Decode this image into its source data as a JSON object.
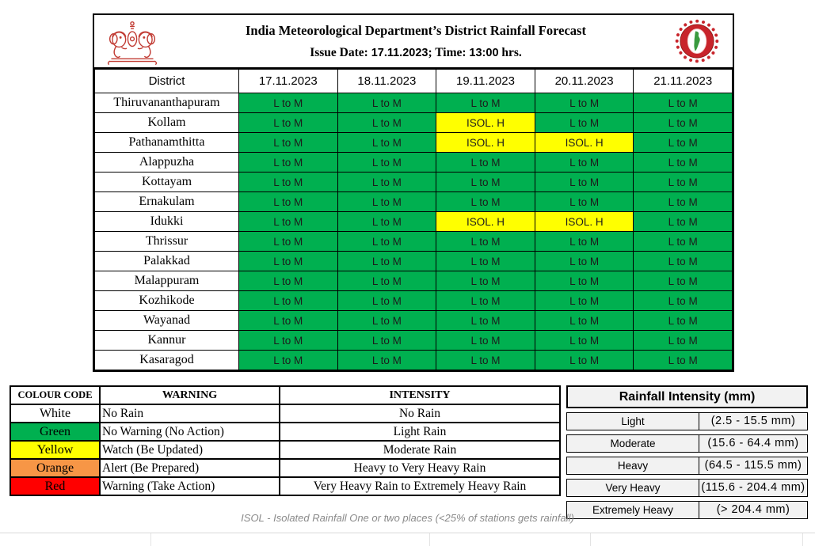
{
  "header": {
    "title": "India Meteorological Department’s District Rainfall Forecast",
    "issue_prefix": "Issue Date: ",
    "issue_date": "17.11.2023",
    "issue_mid": "; Time: ",
    "issue_time": "13:00",
    "issue_suffix": " hrs.",
    "left_logo": "kerala-government-emblem",
    "right_logo": "imd-logo"
  },
  "forecast_table": {
    "columns": [
      "District",
      "17.11.2023",
      "18.11.2023",
      "19.11.2023",
      "20.11.2023",
      "21.11.2023"
    ],
    "rows": [
      {
        "district": "Thiruvananthapuram",
        "cells": [
          {
            "text": "L to M",
            "color": "green"
          },
          {
            "text": "L to M",
            "color": "green"
          },
          {
            "text": "L to M",
            "color": "green"
          },
          {
            "text": "L to M",
            "color": "green"
          },
          {
            "text": "L to M",
            "color": "green"
          }
        ]
      },
      {
        "district": "Kollam",
        "cells": [
          {
            "text": "L to M",
            "color": "green"
          },
          {
            "text": "L to M",
            "color": "green"
          },
          {
            "text": "ISOL. H",
            "color": "yellow"
          },
          {
            "text": "L to M",
            "color": "green"
          },
          {
            "text": "L to M",
            "color": "green"
          }
        ]
      },
      {
        "district": "Pathanamthitta",
        "cells": [
          {
            "text": "L to M",
            "color": "green"
          },
          {
            "text": "L to M",
            "color": "green"
          },
          {
            "text": "ISOL. H",
            "color": "yellow"
          },
          {
            "text": "ISOL. H",
            "color": "yellow"
          },
          {
            "text": "L to M",
            "color": "green"
          }
        ]
      },
      {
        "district": "Alappuzha",
        "cells": [
          {
            "text": "L to M",
            "color": "green"
          },
          {
            "text": "L to M",
            "color": "green"
          },
          {
            "text": "L to M",
            "color": "green"
          },
          {
            "text": "L to M",
            "color": "green"
          },
          {
            "text": "L to M",
            "color": "green"
          }
        ]
      },
      {
        "district": "Kottayam",
        "cells": [
          {
            "text": "L to M",
            "color": "green"
          },
          {
            "text": "L to M",
            "color": "green"
          },
          {
            "text": "L to M",
            "color": "green"
          },
          {
            "text": "L to M",
            "color": "green"
          },
          {
            "text": "L to M",
            "color": "green"
          }
        ]
      },
      {
        "district": "Ernakulam",
        "cells": [
          {
            "text": "L to M",
            "color": "green"
          },
          {
            "text": "L to M",
            "color": "green"
          },
          {
            "text": "L to M",
            "color": "green"
          },
          {
            "text": "L to M",
            "color": "green"
          },
          {
            "text": "L to M",
            "color": "green"
          }
        ]
      },
      {
        "district": "Idukki",
        "cells": [
          {
            "text": "L to M",
            "color": "green"
          },
          {
            "text": "L to M",
            "color": "green"
          },
          {
            "text": "ISOL. H",
            "color": "yellow"
          },
          {
            "text": "ISOL. H",
            "color": "yellow"
          },
          {
            "text": "L to M",
            "color": "green"
          }
        ]
      },
      {
        "district": "Thrissur",
        "cells": [
          {
            "text": "L to M",
            "color": "green"
          },
          {
            "text": "L to M",
            "color": "green"
          },
          {
            "text": "L to M",
            "color": "green"
          },
          {
            "text": "L to M",
            "color": "green"
          },
          {
            "text": "L to M",
            "color": "green"
          }
        ]
      },
      {
        "district": "Palakkad",
        "cells": [
          {
            "text": "L to M",
            "color": "green"
          },
          {
            "text": "L to M",
            "color": "green"
          },
          {
            "text": "L to M",
            "color": "green"
          },
          {
            "text": "L to M",
            "color": "green"
          },
          {
            "text": "L to M",
            "color": "green"
          }
        ]
      },
      {
        "district": "Malappuram",
        "cells": [
          {
            "text": "L to M",
            "color": "green"
          },
          {
            "text": "L to M",
            "color": "green"
          },
          {
            "text": "L to M",
            "color": "green"
          },
          {
            "text": "L to M",
            "color": "green"
          },
          {
            "text": "L to M",
            "color": "green"
          }
        ]
      },
      {
        "district": "Kozhikode",
        "cells": [
          {
            "text": "L to M",
            "color": "green"
          },
          {
            "text": "L to M",
            "color": "green"
          },
          {
            "text": "L to M",
            "color": "green"
          },
          {
            "text": "L to M",
            "color": "green"
          },
          {
            "text": "L to M",
            "color": "green"
          }
        ]
      },
      {
        "district": "Wayanad",
        "cells": [
          {
            "text": "L to M",
            "color": "green"
          },
          {
            "text": "L to M",
            "color": "green"
          },
          {
            "text": "L to M",
            "color": "green"
          },
          {
            "text": "L to M",
            "color": "green"
          },
          {
            "text": "L to M",
            "color": "green"
          }
        ]
      },
      {
        "district": "Kannur",
        "cells": [
          {
            "text": "L to M",
            "color": "green"
          },
          {
            "text": "L to M",
            "color": "green"
          },
          {
            "text": "L to M",
            "color": "green"
          },
          {
            "text": "L to M",
            "color": "green"
          },
          {
            "text": "L to M",
            "color": "green"
          }
        ]
      },
      {
        "district": "Kasaragod",
        "cells": [
          {
            "text": "L to M",
            "color": "green"
          },
          {
            "text": "L to M",
            "color": "green"
          },
          {
            "text": "L to M",
            "color": "green"
          },
          {
            "text": "L to M",
            "color": "green"
          },
          {
            "text": "L to M",
            "color": "green"
          }
        ]
      }
    ]
  },
  "colour_code_table": {
    "headers": [
      "COLOUR CODE",
      "WARNING",
      "INTENSITY"
    ],
    "rows": [
      {
        "colour": "White",
        "hex": "#FFFFFF",
        "warning": "No Rain",
        "intensity": "No Rain"
      },
      {
        "colour": "Green",
        "hex": "#00B050",
        "warning": "No Warning (No Action)",
        "intensity": "Light Rain"
      },
      {
        "colour": "Yellow",
        "hex": "#FFFF00",
        "warning": "Watch (Be Updated)",
        "intensity": "Moderate Rain"
      },
      {
        "colour": "Orange",
        "hex": "#F79646",
        "warning": "Alert (Be Prepared)",
        "intensity": "Heavy to Very Heavy Rain"
      },
      {
        "colour": "Red",
        "hex": "#FF0000",
        "warning": "Warning (Take Action)",
        "intensity": "Very Heavy Rain to Extremely Heavy Rain"
      }
    ]
  },
  "rainfall_intensity_table": {
    "title": "Rainfall Intensity (mm)",
    "rows": [
      {
        "label": "Light",
        "range": "(2.5 - 15.5 mm)"
      },
      {
        "label": "Moderate",
        "range": "(15.6 - 64.4 mm)"
      },
      {
        "label": "Heavy",
        "range": "(64.5 - 115.5 mm)"
      },
      {
        "label": "Very Heavy",
        "range": "(115.6 - 204.4 mm)"
      },
      {
        "label": "Extremely Heavy",
        "range": "(> 204.4 mm)"
      }
    ]
  },
  "note": "ISOL - Isolated Rainfall One or two places (<25% of stations gets rainfall)",
  "colors": {
    "green": "#00B050",
    "yellow": "#FFFF00",
    "orange": "#F79646",
    "red": "#FF0000",
    "logo_red": "#C13B33",
    "imd_red": "#C8242B",
    "imd_green": "#3A9A3F"
  }
}
